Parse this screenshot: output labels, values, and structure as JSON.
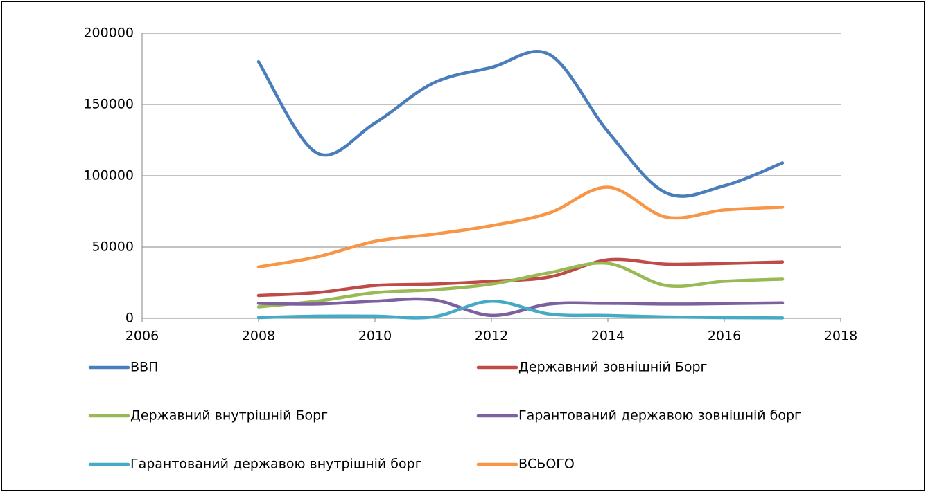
{
  "chart_data": {
    "type": "line",
    "smooth": true,
    "x": [
      2008,
      2009,
      2010,
      2011,
      2012,
      2013,
      2014,
      2015,
      2016,
      2017
    ],
    "series": [
      {
        "name": "ВВП",
        "color": "#4a7ebb",
        "values": [
          180000,
          116000,
          137000,
          165000,
          176000,
          185000,
          131000,
          88000,
          93000,
          109000
        ]
      },
      {
        "name": "Державний зовнішній Борг",
        "color": "#be4b48",
        "values": [
          16000,
          18000,
          23000,
          24000,
          26000,
          29000,
          41000,
          38000,
          38500,
          39500
        ]
      },
      {
        "name": "Державний внутрішній Борг",
        "color": "#98b954",
        "values": [
          8000,
          12000,
          18000,
          20000,
          24000,
          32000,
          38500,
          23000,
          26000,
          27500
        ]
      },
      {
        "name": "Гарантований державою зовнішній борг",
        "color": "#7d60a0",
        "values": [
          10500,
          10000,
          12000,
          13000,
          2000,
          10000,
          10500,
          10000,
          10300,
          10800
        ]
      },
      {
        "name": "Гарантований державою внутрішній борг",
        "color": "#46aac5",
        "values": [
          500,
          1500,
          1500,
          1000,
          12000,
          3000,
          2000,
          1000,
          500,
          300
        ]
      },
      {
        "name": "ВСЬОГО",
        "color": "#f79646",
        "values": [
          36000,
          43000,
          54000,
          59000,
          65000,
          74000,
          92000,
          71000,
          76000,
          78000
        ]
      }
    ],
    "xlim": [
      2006,
      2018
    ],
    "xticks": [
      2006,
      2008,
      2010,
      2012,
      2014,
      2016,
      2018
    ],
    "ylim": [
      0,
      200000
    ],
    "yticks": [
      0,
      50000,
      100000,
      150000,
      200000
    ],
    "grid": true,
    "legend": "bottom"
  }
}
